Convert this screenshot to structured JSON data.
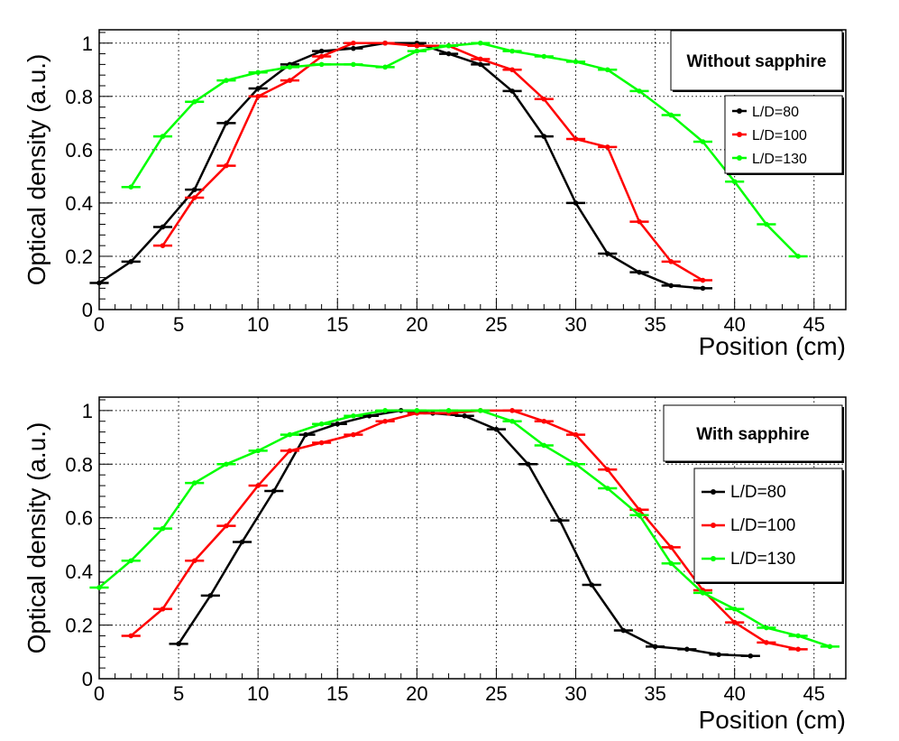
{
  "chart_data": [
    {
      "type": "line",
      "title": "Without sapphire",
      "xlabel": "Position (cm)",
      "ylabel": "Optical density (a.u.)",
      "xlim": [
        0,
        47
      ],
      "ylim": [
        0,
        1.05
      ],
      "grid": true,
      "legend_position": "right",
      "xticks": [
        "0",
        "5",
        "10",
        "15",
        "20",
        "25",
        "30",
        "35",
        "40",
        "45"
      ],
      "yticks": [
        "0",
        "0.2",
        "0.4",
        "0.6",
        "0.8",
        "1"
      ],
      "series": [
        {
          "name": "L/D=80",
          "color": "#000000",
          "x": [
            0,
            2,
            4,
            6,
            8,
            10,
            12,
            14,
            16,
            18,
            20,
            22,
            24,
            26,
            28,
            30,
            32,
            34,
            36,
            38
          ],
          "y": [
            0.1,
            0.18,
            0.31,
            0.45,
            0.7,
            0.83,
            0.92,
            0.97,
            0.98,
            1.0,
            1.0,
            0.96,
            0.92,
            0.82,
            0.65,
            0.4,
            0.21,
            0.14,
            0.09,
            0.08
          ]
        },
        {
          "name": "L/D=100",
          "color": "#ff0000",
          "x": [
            4,
            6,
            8,
            10,
            12,
            14,
            16,
            18,
            20,
            22,
            24,
            26,
            28,
            30,
            32,
            34,
            36,
            38
          ],
          "y": [
            0.24,
            0.42,
            0.54,
            0.8,
            0.86,
            0.95,
            1.0,
            1.0,
            0.99,
            0.99,
            0.94,
            0.9,
            0.79,
            0.64,
            0.61,
            0.33,
            0.18,
            0.11
          ]
        },
        {
          "name": "L/D=130",
          "color": "#00ff00",
          "x": [
            2,
            4,
            6,
            8,
            10,
            12,
            14,
            16,
            18,
            20,
            22,
            24,
            26,
            28,
            30,
            32,
            34,
            36,
            38,
            40,
            42,
            44
          ],
          "y": [
            0.46,
            0.65,
            0.78,
            0.86,
            0.89,
            0.91,
            0.92,
            0.92,
            0.91,
            0.97,
            0.99,
            1.0,
            0.97,
            0.95,
            0.93,
            0.9,
            0.82,
            0.73,
            0.63,
            0.48,
            0.32,
            0.2
          ]
        }
      ]
    },
    {
      "type": "line",
      "title": "With sapphire",
      "xlabel": "Position (cm)",
      "ylabel": "Optical density (a.u.)",
      "xlim": [
        0,
        47
      ],
      "ylim": [
        0,
        1.05
      ],
      "grid": true,
      "legend_position": "right",
      "xticks": [
        "0",
        "5",
        "10",
        "15",
        "20",
        "25",
        "30",
        "35",
        "40",
        "45"
      ],
      "yticks": [
        "0",
        "0.2",
        "0.4",
        "0.6",
        "0.8",
        "1"
      ],
      "series": [
        {
          "name": "L/D=80",
          "color": "#000000",
          "x": [
            5,
            7,
            9,
            11,
            13,
            15,
            17,
            19,
            21,
            23,
            25,
            27,
            29,
            31,
            33,
            35,
            37,
            39,
            41
          ],
          "y": [
            0.13,
            0.31,
            0.51,
            0.7,
            0.91,
            0.95,
            0.98,
            1.0,
            0.99,
            0.98,
            0.93,
            0.8,
            0.59,
            0.35,
            0.18,
            0.12,
            0.11,
            0.09,
            0.085
          ]
        },
        {
          "name": "L/D=100",
          "color": "#ff0000",
          "x": [
            2,
            4,
            6,
            8,
            10,
            12,
            14,
            16,
            18,
            20,
            22,
            24,
            26,
            28,
            30,
            32,
            34,
            36,
            38,
            40,
            42,
            44
          ],
          "y": [
            0.16,
            0.26,
            0.44,
            0.57,
            0.72,
            0.85,
            0.88,
            0.91,
            0.96,
            0.99,
            0.99,
            1.0,
            1.0,
            0.96,
            0.91,
            0.78,
            0.63,
            0.49,
            0.33,
            0.21,
            0.135,
            0.11
          ]
        },
        {
          "name": "L/D=130",
          "color": "#00ff00",
          "x": [
            0,
            2,
            4,
            6,
            8,
            10,
            12,
            14,
            16,
            18,
            20,
            22,
            24,
            26,
            28,
            30,
            32,
            34,
            36,
            38,
            40,
            42,
            44,
            46
          ],
          "y": [
            0.34,
            0.44,
            0.56,
            0.73,
            0.8,
            0.85,
            0.91,
            0.95,
            0.98,
            1.0,
            1.0,
            1.0,
            1.0,
            0.96,
            0.87,
            0.8,
            0.71,
            0.61,
            0.43,
            0.32,
            0.26,
            0.19,
            0.16,
            0.12
          ]
        }
      ]
    }
  ]
}
